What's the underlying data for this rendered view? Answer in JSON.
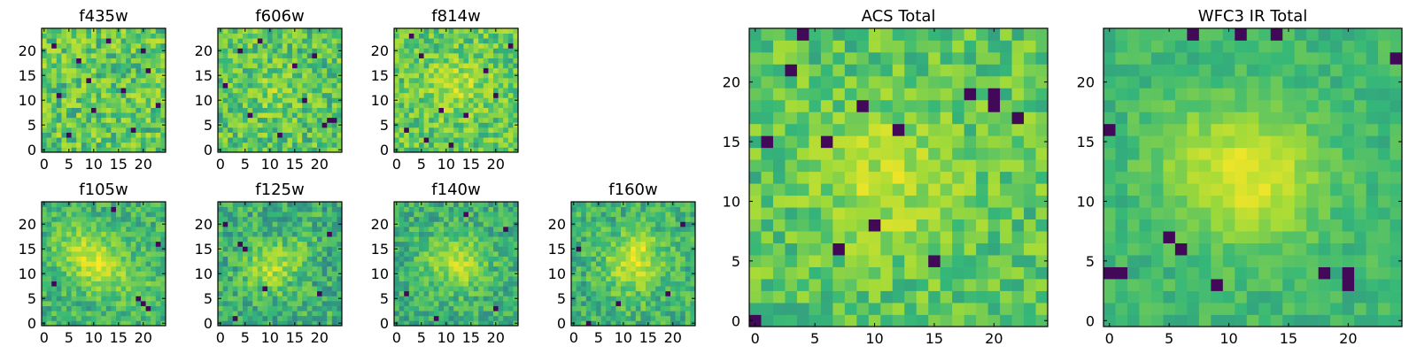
{
  "chart_data": {
    "type": "heatmap",
    "colormap": "viridis",
    "colormap_stops": [
      "#440154",
      "#31688e",
      "#35b779",
      "#a0da39",
      "#fde725"
    ],
    "grid": false,
    "legend": "none",
    "panels": [
      {
        "id": "f435w",
        "title": "f435w",
        "size": [
          25,
          25
        ],
        "xlim": [
          -0.5,
          24.5
        ],
        "ylim": [
          -0.5,
          24.5
        ],
        "xticks": [
          0,
          5,
          10,
          15,
          20
        ],
        "yticks": [
          0,
          5,
          10,
          15,
          20
        ],
        "base": 0.62,
        "spread": 0.45,
        "seed": 11,
        "blobs": [],
        "dark_pixels": [
          [
            2,
            21
          ],
          [
            5,
            3
          ],
          [
            7,
            18
          ],
          [
            10,
            8
          ],
          [
            13,
            22
          ],
          [
            16,
            12
          ],
          [
            18,
            4
          ],
          [
            21,
            16
          ],
          [
            23,
            9
          ],
          [
            3,
            11
          ],
          [
            9,
            14
          ],
          [
            20,
            20
          ]
        ]
      },
      {
        "id": "f606w",
        "title": "f606w",
        "size": [
          25,
          25
        ],
        "xlim": [
          -0.5,
          24.5
        ],
        "ylim": [
          -0.5,
          24.5
        ],
        "xticks": [
          0,
          5,
          10,
          15,
          20
        ],
        "yticks": [
          0,
          5,
          10,
          15,
          20
        ],
        "base": 0.6,
        "spread": 0.42,
        "seed": 23,
        "blobs": [
          [
            11,
            12,
            3.5,
            0.12
          ]
        ],
        "dark_pixels": [
          [
            1,
            13
          ],
          [
            4,
            20
          ],
          [
            6,
            7
          ],
          [
            12,
            3
          ],
          [
            15,
            17
          ],
          [
            17,
            10
          ],
          [
            21,
            5
          ],
          [
            22,
            6
          ],
          [
            23,
            6
          ],
          [
            8,
            22
          ],
          [
            19,
            19
          ]
        ]
      },
      {
        "id": "f814w",
        "title": "f814w",
        "size": [
          25,
          25
        ],
        "xlim": [
          -0.5,
          24.5
        ],
        "ylim": [
          -0.5,
          24.5
        ],
        "xticks": [
          0,
          5,
          10,
          15,
          20
        ],
        "yticks": [
          0,
          5,
          10,
          15,
          20
        ],
        "base": 0.62,
        "spread": 0.4,
        "seed": 37,
        "blobs": [
          [
            12,
            13,
            4,
            0.18
          ]
        ],
        "dark_pixels": [
          [
            2,
            4
          ],
          [
            5,
            19
          ],
          [
            6,
            2
          ],
          [
            11,
            1
          ],
          [
            14,
            7
          ],
          [
            18,
            16
          ],
          [
            20,
            11
          ],
          [
            23,
            21
          ],
          [
            9,
            8
          ],
          [
            3,
            23
          ]
        ]
      },
      {
        "id": "f105w",
        "title": "f105w",
        "size": [
          25,
          25
        ],
        "xlim": [
          -0.5,
          24.5
        ],
        "ylim": [
          -0.5,
          24.5
        ],
        "xticks": [
          0,
          5,
          10,
          15,
          20
        ],
        "yticks": [
          0,
          5,
          10,
          15,
          20
        ],
        "base": 0.52,
        "spread": 0.3,
        "seed": 41,
        "blobs": [
          [
            11,
            12,
            3.5,
            0.35
          ],
          [
            6,
            16,
            3,
            0.18
          ],
          [
            18,
            8,
            3,
            0.12
          ]
        ],
        "dark_pixels": [
          [
            19,
            5
          ],
          [
            20,
            4
          ],
          [
            21,
            3
          ],
          [
            2,
            8
          ],
          [
            23,
            16
          ],
          [
            14,
            23
          ]
        ]
      },
      {
        "id": "f125w",
        "title": "f125w",
        "size": [
          25,
          25
        ],
        "xlim": [
          -0.5,
          24.5
        ],
        "ylim": [
          -0.5,
          24.5
        ],
        "xticks": [
          0,
          5,
          10,
          15,
          20
        ],
        "yticks": [
          0,
          5,
          10,
          15,
          20
        ],
        "base": 0.5,
        "spread": 0.34,
        "seed": 53,
        "blobs": [
          [
            10,
            11,
            3.2,
            0.3
          ],
          [
            16,
            14,
            2.5,
            0.12
          ]
        ],
        "dark_pixels": [
          [
            4,
            16
          ],
          [
            5,
            15
          ],
          [
            3,
            1
          ],
          [
            9,
            7
          ],
          [
            20,
            6
          ],
          [
            22,
            18
          ],
          [
            1,
            20
          ]
        ]
      },
      {
        "id": "f140w",
        "title": "f140w",
        "size": [
          25,
          25
        ],
        "xlim": [
          -0.5,
          24.5
        ],
        "ylim": [
          -0.5,
          24.5
        ],
        "xticks": [
          0,
          5,
          10,
          15,
          20
        ],
        "yticks": [
          0,
          5,
          10,
          15,
          20
        ],
        "base": 0.5,
        "spread": 0.3,
        "seed": 67,
        "blobs": [
          [
            13,
            12,
            3.5,
            0.32
          ],
          [
            7,
            14,
            2.5,
            0.12
          ]
        ],
        "dark_pixels": [
          [
            14,
            22
          ],
          [
            2,
            6
          ],
          [
            20,
            3
          ],
          [
            22,
            19
          ],
          [
            8,
            1
          ]
        ]
      },
      {
        "id": "f160w",
        "title": "f160w",
        "size": [
          25,
          25
        ],
        "xlim": [
          -0.5,
          24.5
        ],
        "ylim": [
          -0.5,
          24.5
        ],
        "xticks": [
          0,
          5,
          10,
          15,
          20
        ],
        "yticks": [
          0,
          5,
          10,
          15,
          20
        ],
        "base": 0.52,
        "spread": 0.32,
        "seed": 79,
        "blobs": [
          [
            12,
            12,
            3.8,
            0.34
          ],
          [
            14,
            16,
            2,
            0.12
          ]
        ],
        "dark_pixels": [
          [
            3,
            0
          ],
          [
            9,
            4
          ],
          [
            19,
            6
          ],
          [
            22,
            20
          ],
          [
            1,
            15
          ]
        ]
      },
      {
        "id": "acs_total",
        "title": "ACS Total",
        "size": [
          25,
          25
        ],
        "xlim": [
          -0.5,
          24.5
        ],
        "ylim": [
          -0.5,
          24.5
        ],
        "xticks": [
          0,
          5,
          10,
          15,
          20
        ],
        "yticks": [
          0,
          5,
          10,
          15,
          20
        ],
        "base": 0.6,
        "spread": 0.34,
        "seed": 97,
        "blobs": [
          [
            11,
            12,
            4,
            0.22
          ]
        ],
        "dark_pixels": [
          [
            4,
            24
          ],
          [
            3,
            21
          ],
          [
            1,
            15
          ],
          [
            6,
            15
          ],
          [
            9,
            18
          ],
          [
            18,
            19
          ],
          [
            20,
            18
          ],
          [
            20,
            19
          ],
          [
            22,
            17
          ],
          [
            10,
            8
          ],
          [
            7,
            6
          ],
          [
            15,
            5
          ],
          [
            0,
            0
          ],
          [
            12,
            16
          ]
        ]
      },
      {
        "id": "wfc3_ir_total",
        "title": "WFC3 IR Total",
        "size": [
          25,
          25
        ],
        "xlim": [
          -0.5,
          24.5
        ],
        "ylim": [
          -0.5,
          24.5
        ],
        "xticks": [
          0,
          5,
          10,
          15,
          20
        ],
        "yticks": [
          0,
          5,
          10,
          15,
          20
        ],
        "base": 0.52,
        "spread": 0.18,
        "seed": 113,
        "blobs": [
          [
            12,
            12,
            3.8,
            0.38
          ],
          [
            6,
            14,
            3,
            0.1
          ]
        ],
        "dark_pixels": [
          [
            7,
            24
          ],
          [
            11,
            24
          ],
          [
            14,
            24
          ],
          [
            24,
            22
          ],
          [
            0,
            16
          ],
          [
            0,
            4
          ],
          [
            1,
            4
          ],
          [
            5,
            7
          ],
          [
            6,
            6
          ],
          [
            18,
            4
          ],
          [
            20,
            4
          ],
          [
            20,
            3
          ],
          [
            9,
            3
          ]
        ]
      }
    ]
  }
}
